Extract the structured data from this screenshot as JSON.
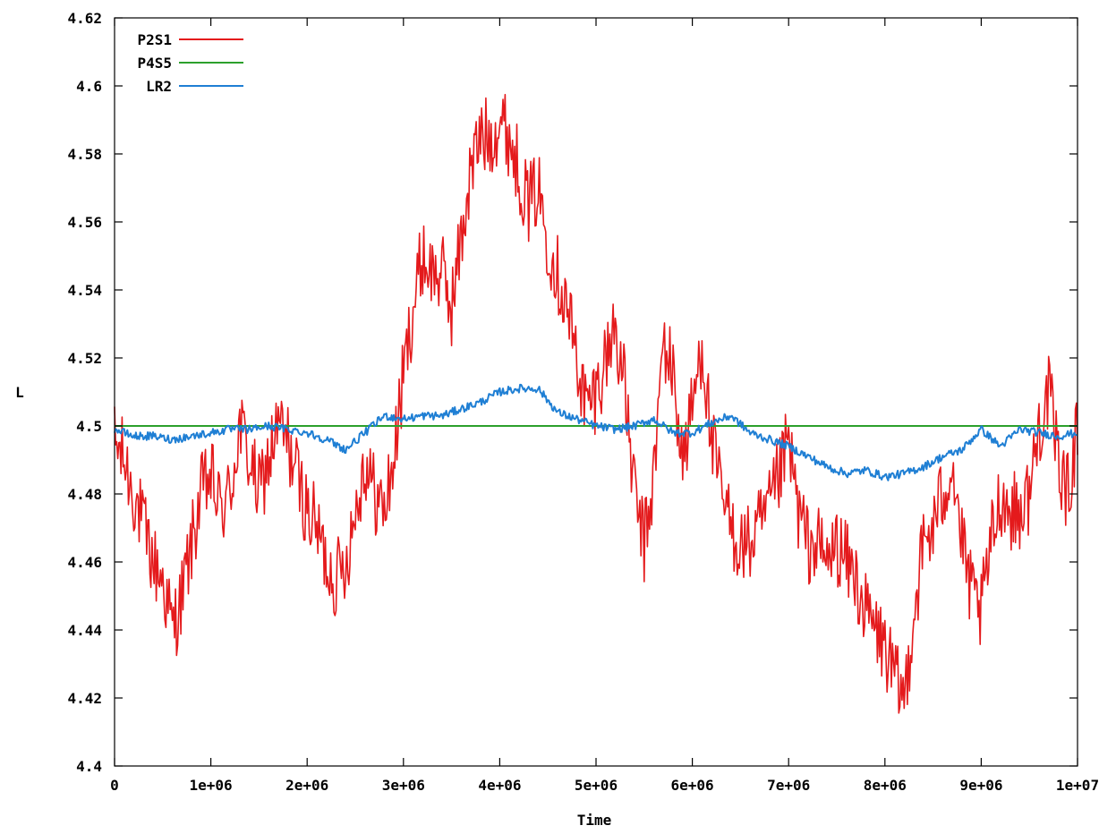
{
  "chart_data": {
    "type": "line",
    "title": "",
    "xlabel": "Time",
    "ylabel": "L",
    "xlim": [
      0,
      10000000
    ],
    "ylim": [
      4.4,
      4.62
    ],
    "x_ticks": [
      {
        "value": 0,
        "label": "0"
      },
      {
        "value": 1000000,
        "label": "1e+06"
      },
      {
        "value": 2000000,
        "label": "2e+06"
      },
      {
        "value": 3000000,
        "label": "3e+06"
      },
      {
        "value": 4000000,
        "label": "4e+06"
      },
      {
        "value": 5000000,
        "label": "5e+06"
      },
      {
        "value": 6000000,
        "label": "6e+06"
      },
      {
        "value": 7000000,
        "label": "7e+06"
      },
      {
        "value": 8000000,
        "label": "8e+06"
      },
      {
        "value": 9000000,
        "label": "9e+06"
      },
      {
        "value": 10000000,
        "label": "1e+07"
      }
    ],
    "y_ticks": [
      {
        "value": 4.4,
        "label": "4.4"
      },
      {
        "value": 4.42,
        "label": "4.42"
      },
      {
        "value": 4.44,
        "label": "4.44"
      },
      {
        "value": 4.46,
        "label": "4.46"
      },
      {
        "value": 4.48,
        "label": "4.48"
      },
      {
        "value": 4.5,
        "label": "4.5"
      },
      {
        "value": 4.52,
        "label": "4.52"
      },
      {
        "value": 4.54,
        "label": "4.54"
      },
      {
        "value": 4.56,
        "label": "4.56"
      },
      {
        "value": 4.58,
        "label": "4.58"
      },
      {
        "value": 4.6,
        "label": "4.6"
      },
      {
        "value": 4.62,
        "label": "4.62"
      }
    ],
    "grid": false,
    "legend_position": "top-left",
    "series": [
      {
        "name": "P2S1",
        "color": "#e41a1c",
        "noise": 0.012,
        "x": [
          0,
          100000,
          200000,
          300000,
          400000,
          500000,
          600000,
          700000,
          800000,
          900000,
          1000000,
          1100000,
          1200000,
          1300000,
          1400000,
          1500000,
          1600000,
          1700000,
          1800000,
          1900000,
          2000000,
          2100000,
          2200000,
          2300000,
          2400000,
          2500000,
          2600000,
          2700000,
          2800000,
          2900000,
          3000000,
          3100000,
          3200000,
          3300000,
          3400000,
          3500000,
          3600000,
          3700000,
          3800000,
          3900000,
          4000000,
          4100000,
          4200000,
          4300000,
          4400000,
          4500000,
          4600000,
          4700000,
          4800000,
          4900000,
          5000000,
          5100000,
          5200000,
          5300000,
          5400000,
          5500000,
          5600000,
          5700000,
          5800000,
          5900000,
          6000000,
          6100000,
          6200000,
          6300000,
          6400000,
          6500000,
          6600000,
          6700000,
          6800000,
          6900000,
          7000000,
          7100000,
          7200000,
          7300000,
          7400000,
          7500000,
          7600000,
          7700000,
          7800000,
          7900000,
          8000000,
          8100000,
          8200000,
          8300000,
          8400000,
          8500000,
          8600000,
          8700000,
          8800000,
          8900000,
          9000000,
          9100000,
          9200000,
          9300000,
          9400000,
          9500000,
          9600000,
          9700000,
          9800000,
          9900000,
          10000000
        ],
        "values": [
          4.495,
          4.49,
          4.48,
          4.47,
          4.46,
          4.455,
          4.44,
          4.45,
          4.465,
          4.48,
          4.485,
          4.475,
          4.48,
          4.5,
          4.49,
          4.48,
          4.49,
          4.5,
          4.495,
          4.485,
          4.475,
          4.47,
          4.46,
          4.455,
          4.46,
          4.475,
          4.49,
          4.48,
          4.475,
          4.49,
          4.515,
          4.535,
          4.55,
          4.545,
          4.545,
          4.535,
          4.555,
          4.575,
          4.585,
          4.585,
          4.59,
          4.585,
          4.575,
          4.565,
          4.57,
          4.555,
          4.545,
          4.535,
          4.52,
          4.505,
          4.51,
          4.52,
          4.53,
          4.51,
          4.48,
          4.465,
          4.485,
          4.525,
          4.515,
          4.49,
          4.505,
          4.525,
          4.495,
          4.48,
          4.47,
          4.465,
          4.465,
          4.47,
          4.475,
          4.485,
          4.495,
          4.475,
          4.465,
          4.465,
          4.46,
          4.465,
          4.46,
          4.455,
          4.445,
          4.44,
          4.435,
          4.425,
          4.42,
          4.445,
          4.465,
          4.47,
          4.48,
          4.49,
          4.465,
          4.45,
          4.445,
          4.465,
          4.48,
          4.475,
          4.475,
          4.48,
          4.5,
          4.51,
          4.49,
          4.48,
          4.5
        ]
      },
      {
        "name": "P4S5",
        "color": "#2ca02c",
        "noise": 0,
        "x": [
          0,
          10000000
        ],
        "values": [
          4.5,
          4.5
        ]
      },
      {
        "name": "LR2",
        "color": "#1f7fd4",
        "noise": 0.0012,
        "x": [
          0,
          200000,
          400000,
          600000,
          800000,
          1000000,
          1200000,
          1400000,
          1600000,
          1800000,
          2000000,
          2200000,
          2400000,
          2600000,
          2800000,
          3000000,
          3200000,
          3400000,
          3600000,
          3800000,
          4000000,
          4200000,
          4400000,
          4600000,
          4800000,
          5000000,
          5200000,
          5400000,
          5600000,
          5800000,
          6000000,
          6200000,
          6400000,
          6600000,
          6800000,
          7000000,
          7200000,
          7400000,
          7600000,
          7800000,
          8000000,
          8200000,
          8400000,
          8600000,
          8800000,
          9000000,
          9200000,
          9400000,
          9600000,
          9800000,
          10000000
        ],
        "values": [
          4.499,
          4.497,
          4.497,
          4.496,
          4.497,
          4.498,
          4.499,
          4.499,
          4.5,
          4.499,
          4.498,
          4.496,
          4.493,
          4.498,
          4.503,
          4.502,
          4.503,
          4.503,
          4.505,
          4.507,
          4.51,
          4.511,
          4.511,
          4.504,
          4.502,
          4.5,
          4.499,
          4.5,
          4.502,
          4.498,
          4.498,
          4.501,
          4.503,
          4.498,
          4.496,
          4.494,
          4.491,
          4.488,
          4.486,
          4.487,
          4.485,
          4.486,
          4.488,
          4.491,
          4.493,
          4.499,
          4.494,
          4.499,
          4.498,
          4.497,
          4.498
        ]
      }
    ]
  }
}
